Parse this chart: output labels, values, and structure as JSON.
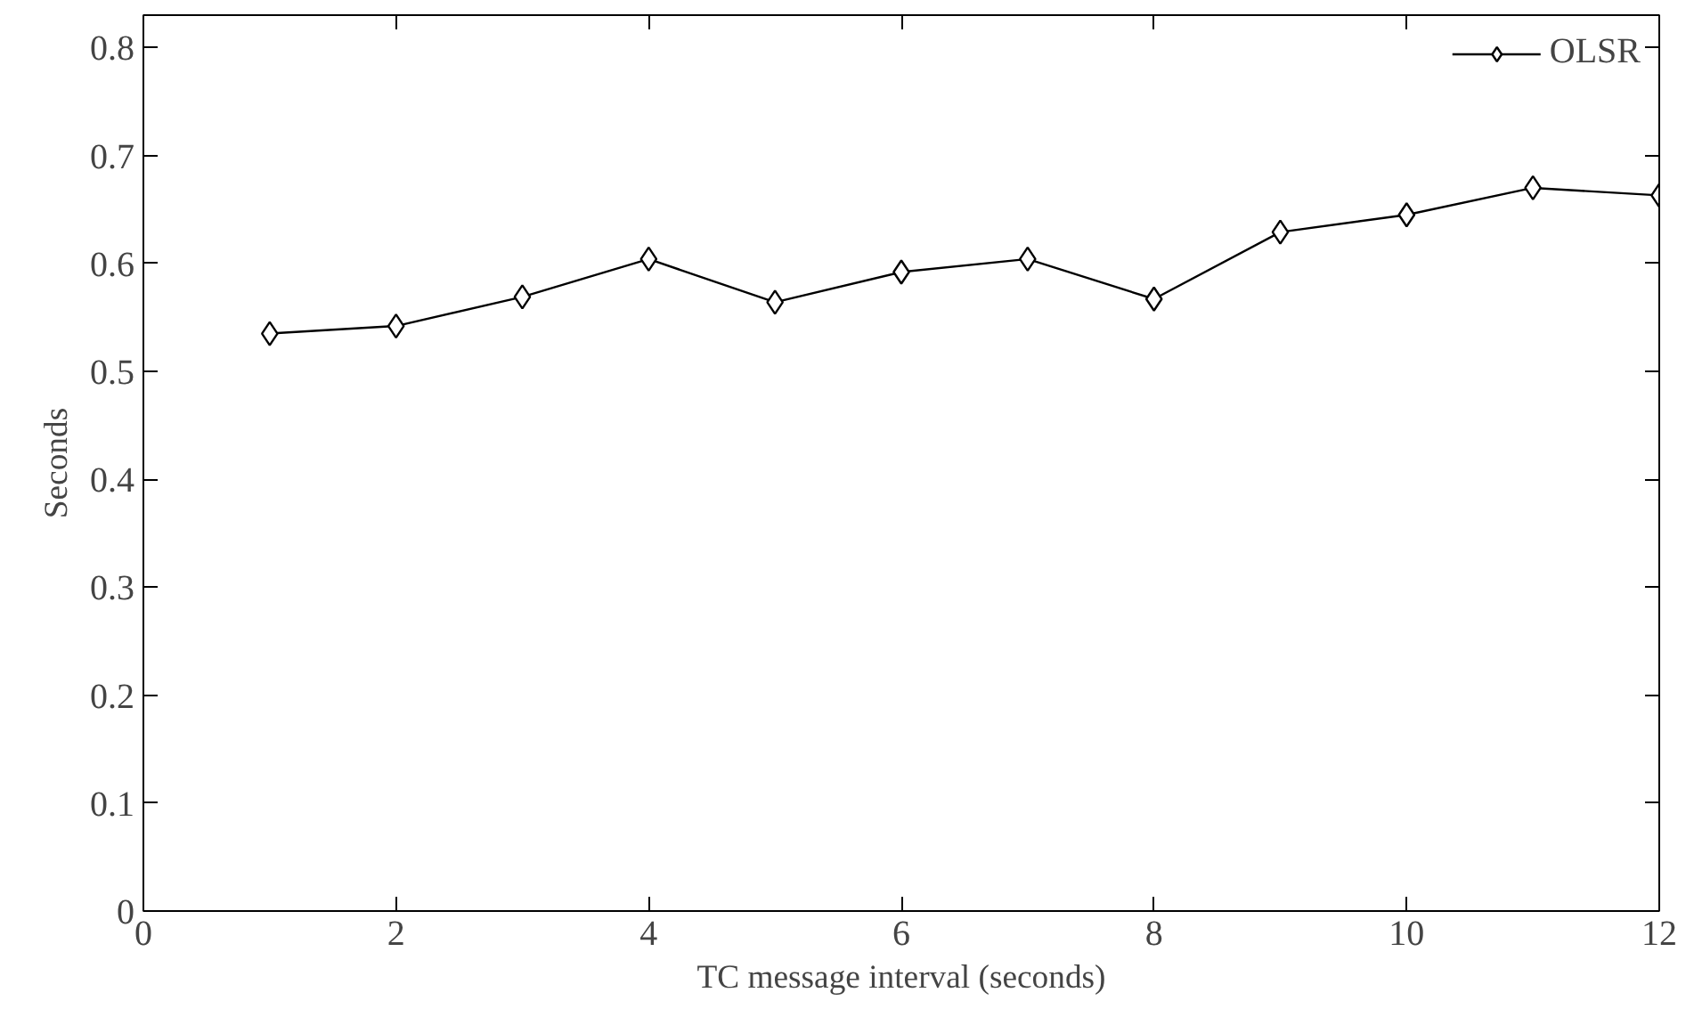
{
  "chart_data": {
    "type": "line",
    "xlabel": "TC message interval (seconds)",
    "ylabel": "Seconds",
    "x": [
      1,
      2,
      3,
      4,
      5,
      6,
      7,
      8,
      9,
      10,
      11,
      12
    ],
    "series": [
      {
        "name": "OLSR",
        "color": "#000000",
        "values": [
          0.535,
          0.542,
          0.569,
          0.604,
          0.564,
          0.592,
          0.604,
          0.567,
          0.629,
          0.645,
          0.67,
          0.663
        ]
      }
    ],
    "xlim": [
      0,
      12
    ],
    "ylim": [
      0,
      0.83
    ],
    "xticks": [
      0,
      2,
      4,
      6,
      8,
      10,
      12
    ],
    "yticks": [
      0,
      0.1,
      0.2,
      0.3,
      0.4,
      0.5,
      0.6,
      0.7,
      0.8
    ],
    "marker": "diamond",
    "line_style": "solid",
    "legend": "top right",
    "grid": false
  }
}
